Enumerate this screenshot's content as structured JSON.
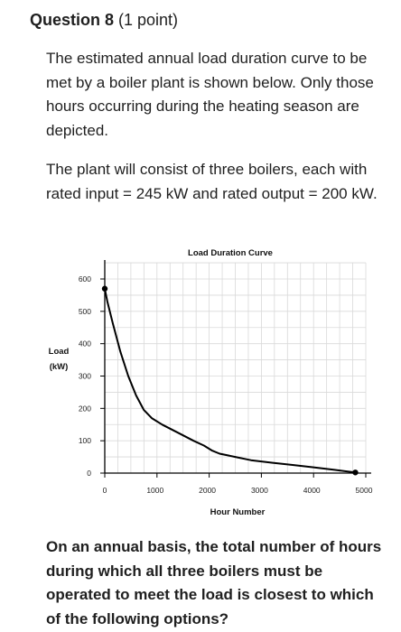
{
  "question": {
    "title": "Question 8",
    "points": " (1 point)",
    "paragraph1": "The estimated annual load duration curve to be met by a boiler plant is shown below. Only those hours occurring during the heating season are depicted.",
    "paragraph2": "The plant will consist of three boilers, each with rated input = 245 kW and rated output = 200 kW.",
    "prompt": "On an annual basis, the total number of hours during which all three boilers must be operated to meet the load is closest to which of the following options?"
  },
  "chart_data": {
    "type": "line",
    "title": "Load Duration Curve",
    "xlabel": "Hour Number",
    "ylabel_line1": "Load",
    "ylabel_line2": "(kW)",
    "xlim": [
      0,
      5000
    ],
    "ylim": [
      0,
      600
    ],
    "xticks": [
      0,
      1000,
      2000,
      3000,
      4000,
      5000
    ],
    "yticks": [
      0,
      100,
      200,
      300,
      400,
      500,
      600
    ],
    "grid": true,
    "series": [
      {
        "x": [
          0,
          50,
          150,
          300,
          450,
          600,
          750,
          900,
          1100,
          1400,
          1700,
          1900,
          2050,
          2200,
          2500,
          2800,
          3200,
          3600,
          4000,
          4400,
          4800
        ],
        "y": [
          570,
          530,
          465,
          375,
          300,
          240,
          195,
          170,
          150,
          125,
          100,
          85,
          70,
          60,
          50,
          40,
          32,
          25,
          18,
          10,
          2
        ]
      }
    ],
    "markers": [
      {
        "x": 0,
        "y": 570
      },
      {
        "x": 4800,
        "y": 2
      }
    ],
    "colors": {
      "line": "#000000",
      "grid": "#d9d9d9",
      "axis": "#000000"
    }
  }
}
